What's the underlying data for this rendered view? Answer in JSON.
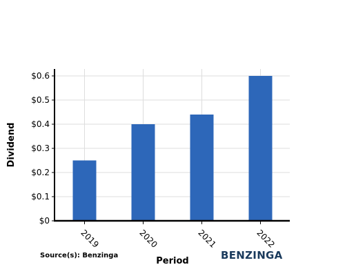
{
  "chart_data": {
    "type": "bar",
    "categories": [
      "2019",
      "2020",
      "2021",
      "2022"
    ],
    "values": [
      0.25,
      0.4,
      0.44,
      0.6
    ],
    "ylabel": "Dividend",
    "xlabel": "Period",
    "ylim": [
      0,
      0.6
    ],
    "yticks": [
      0,
      0.1,
      0.2,
      0.3,
      0.4,
      0.5,
      0.6
    ],
    "ytick_labels": [
      "$0",
      "$0.1",
      "$0.2",
      "$0.3",
      "$0.4",
      "$0.5",
      "$0.6"
    ],
    "grid": true,
    "bar_color": "#2d67b9"
  },
  "footer": {
    "source": "Source(s): Benzinga",
    "logo": "BENZINGA",
    "logo_color": "#1a3a5c"
  }
}
